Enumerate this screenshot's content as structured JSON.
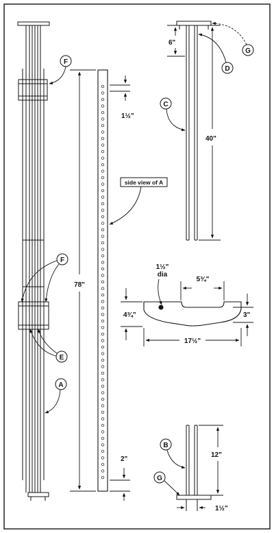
{
  "callouts": {
    "f_top": "F",
    "f_mid": "F",
    "e": "E",
    "a": "A",
    "c": "C",
    "d": "D",
    "g_top": "G",
    "b": "B",
    "g_bottom": "G"
  },
  "dimensions": {
    "hole_spacing": "1½\"",
    "total_height": "78\"",
    "bottom_offset": "2\"",
    "top_cap": "6\"",
    "rod_length": "40\"",
    "hole_dia_value": "1½\"",
    "hole_dia_unit": "dia",
    "slot_width": "5¾\"",
    "base_height": "4¾\"",
    "base_thickness": "3\"",
    "base_length": "17½\"",
    "foot_height": "12\"",
    "foot_width": "1½\""
  },
  "labels": {
    "side_view": "side view of A"
  },
  "colors": {
    "ink": "#111111",
    "paper": "#ffffff"
  }
}
